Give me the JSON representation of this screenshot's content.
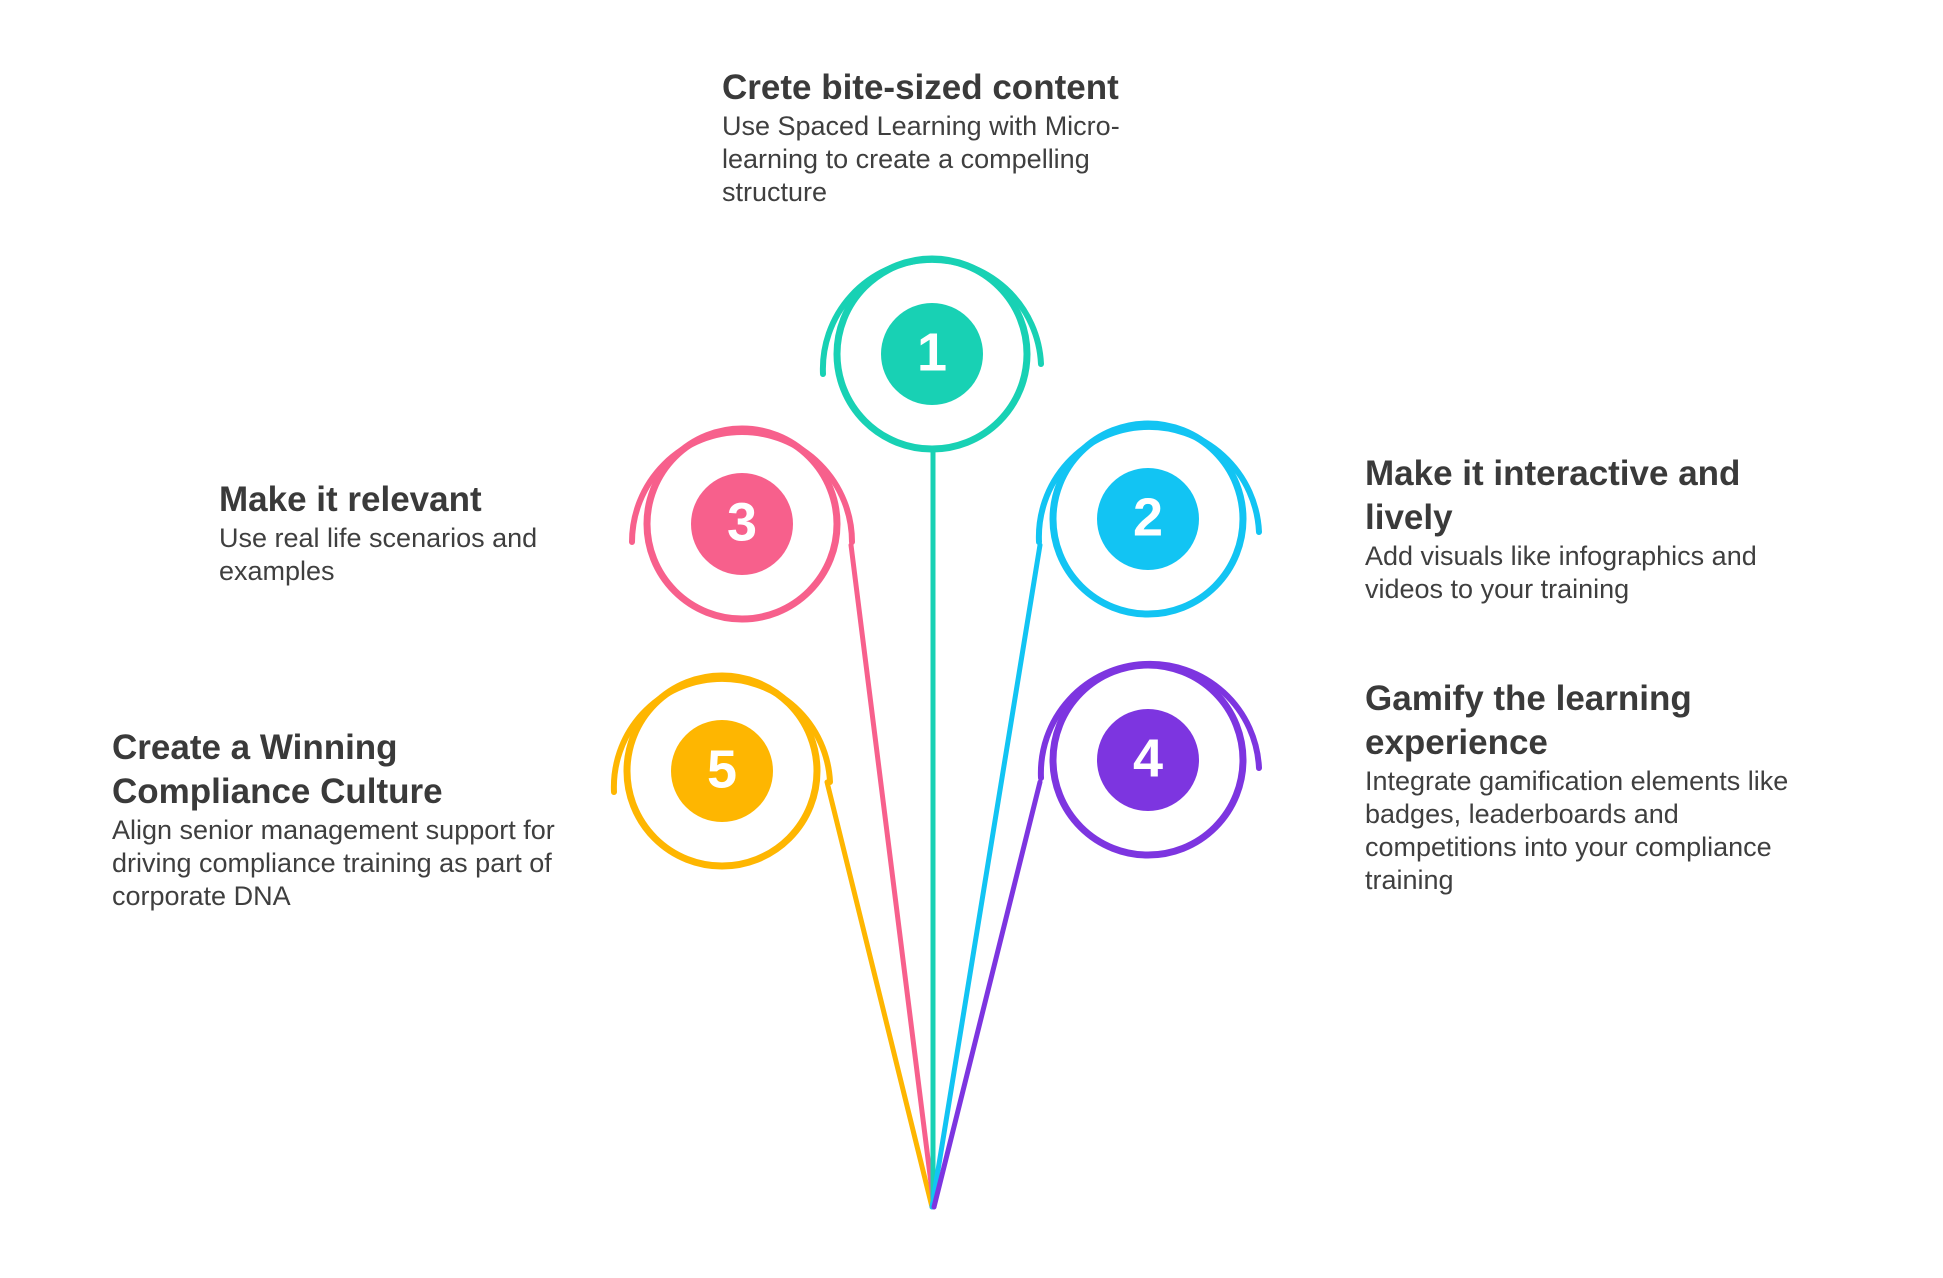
{
  "steps": [
    {
      "number": "1",
      "color": "#18d1b4",
      "title": "Crete bite-sized content",
      "description": "Use Spaced Learning with Micro-learning to create a compelling structure"
    },
    {
      "number": "2",
      "color": "#12c4f3",
      "title": "Make it interactive and lively",
      "description": "Add visuals like infographics and videos to your training"
    },
    {
      "number": "3",
      "color": "#f7608c",
      "title": "Make it relevant",
      "description": "Use real life scenarios and examples"
    },
    {
      "number": "4",
      "color": "#7d35e0",
      "title": "Gamify the learning experience",
      "description": "Integrate gamification elements like badges, leaderboards and competitions into your compliance training"
    },
    {
      "number": "5",
      "color": "#feb601",
      "title": "Create a Winning Compliance Culture",
      "description": "Align senior management support for driving compliance training as part of corporate DNA"
    }
  ]
}
